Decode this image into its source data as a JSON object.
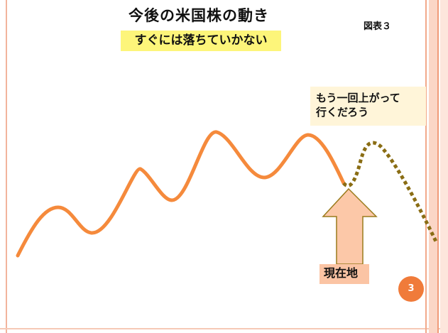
{
  "title": "今後の米国株の動き",
  "subtitle": "すぐには落ちていかない",
  "figure_label": "図表３",
  "callout": {
    "line1": "もう一回上がって",
    "line2": "行くだろう"
  },
  "current_label": "現在地",
  "page_number": "3",
  "colors": {
    "actual_line": "#f58a3c",
    "forecast_line": "#8a6d14",
    "arrow_fill": "#fcc8a8",
    "arrow_stroke": "#9a7b1c",
    "highlight": "#fdf57a"
  }
}
